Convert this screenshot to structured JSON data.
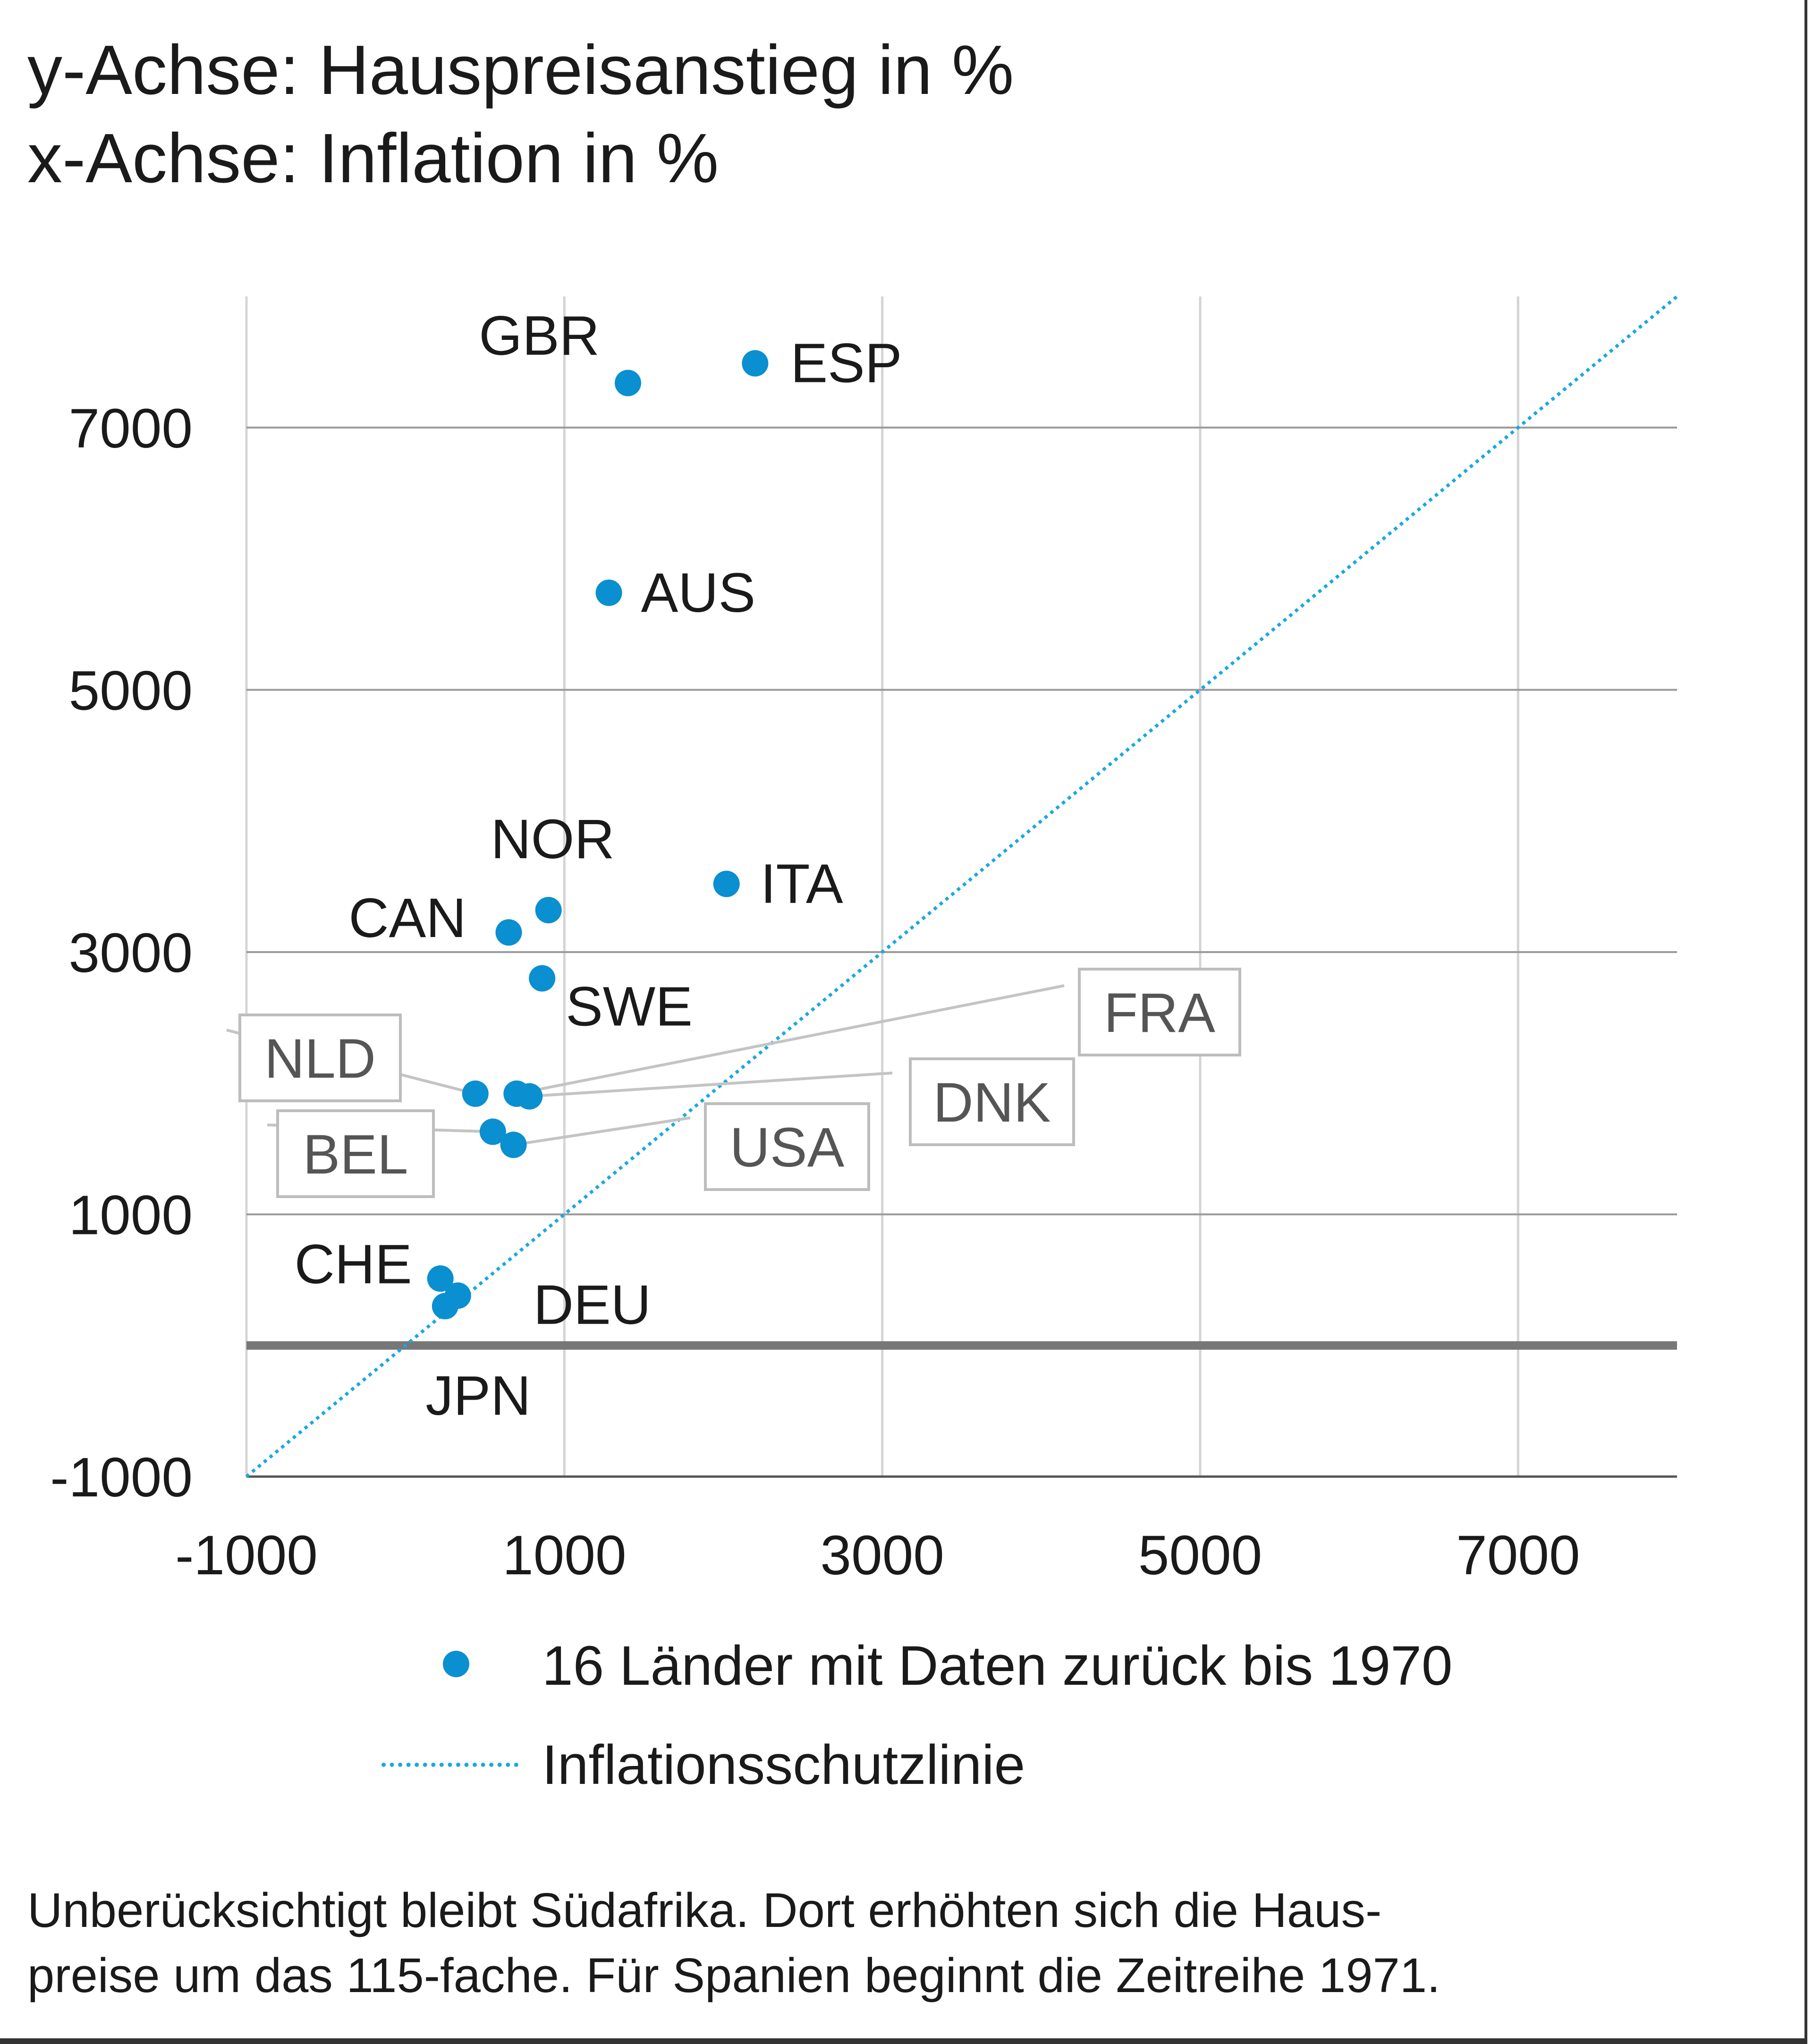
{
  "header": {
    "line1": "y-Achse: Hauspreisanstieg in %",
    "line2": "x-Achse: Inflation in %"
  },
  "chart_data": {
    "type": "scatter",
    "title": "",
    "xlabel": "Inflation in %",
    "ylabel": "Hauspreisanstieg in %",
    "xlim": [
      -1000,
      8000
    ],
    "ylim": [
      -1000,
      8000
    ],
    "x_ticks": [
      -1000,
      1000,
      3000,
      5000,
      7000
    ],
    "y_ticks": [
      -1000,
      1000,
      3000,
      5000,
      7000
    ],
    "grid": true,
    "zero_line": true,
    "colors": {
      "points": "#0a8fd0",
      "reference": "#1aa8e0",
      "grid": "#999999",
      "zero": "#777777",
      "callout": "#888888"
    },
    "series": [
      {
        "name": "16 Länder mit Daten zurück bis 1970",
        "points": [
          {
            "label": "GBR",
            "x": 1400,
            "y": 7340
          },
          {
            "label": "ESP",
            "x": 2200,
            "y": 7490
          },
          {
            "label": "AUS",
            "x": 1280,
            "y": 5740
          },
          {
            "label": "NOR",
            "x": 900,
            "y": 3320
          },
          {
            "label": "ITA",
            "x": 2020,
            "y": 3520
          },
          {
            "label": "CAN",
            "x": 650,
            "y": 3150
          },
          {
            "label": "SWE",
            "x": 860,
            "y": 2800
          },
          {
            "label": "NLD",
            "x": 440,
            "y": 1920
          },
          {
            "label": "FRA",
            "x": 700,
            "y": 1920
          },
          {
            "label": "DNK",
            "x": 780,
            "y": 1900
          },
          {
            "label": "BEL",
            "x": 550,
            "y": 1630
          },
          {
            "label": "USA",
            "x": 680,
            "y": 1530
          },
          {
            "label": "CHE",
            "x": 220,
            "y": 510
          },
          {
            "label": "DEU",
            "x": 330,
            "y": 380
          },
          {
            "label": "JPN",
            "x": 250,
            "y": 300
          }
        ]
      }
    ],
    "reference_line": {
      "name": "Inflationsschutzlinie",
      "style": "dotted",
      "from": [
        -1000,
        -1000
      ],
      "to": [
        8000,
        8000
      ]
    },
    "legend": {
      "position": "bottom",
      "items": [
        "16 Länder mit Daten zurück bis 1970",
        "Inflationsschutzlinie"
      ]
    }
  },
  "footnote": {
    "line1": "Unberücksichtigt bleibt Südafrika. Dort erhöhten sich die Haus-",
    "line2": "preise um das 115-fache. Für Spanien beginnt die Zeitreihe 1971."
  }
}
